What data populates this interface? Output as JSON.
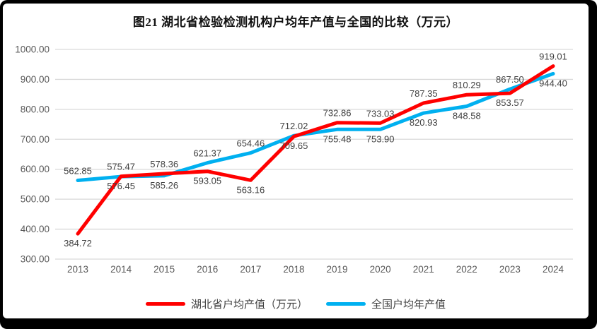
{
  "window": {
    "frame_color": "#000000",
    "background": "#ffffff"
  },
  "chart_data": {
    "type": "line",
    "title": "图21 湖北省检验检测机构户均年产值与全国的比较（万元）",
    "categories": [
      "2013",
      "2014",
      "2015",
      "2016",
      "2017",
      "2018",
      "2019",
      "2020",
      "2021",
      "2022",
      "2023",
      "2024"
    ],
    "series": [
      {
        "name": "湖北省户均产值（万元）",
        "color": "#FF0000",
        "label_position": "below",
        "values": [
          384.72,
          576.45,
          585.26,
          593.05,
          563.16,
          709.65,
          755.48,
          753.9,
          820.93,
          848.58,
          853.57,
          944.4
        ]
      },
      {
        "name": "全国户均年产值",
        "color": "#00B0F0",
        "label_position": "above",
        "values": [
          562.85,
          575.47,
          578.36,
          621.37,
          654.46,
          712.02,
          732.86,
          733.03,
          787.35,
          810.29,
          867.5,
          919.01
        ]
      }
    ],
    "xlabel": "",
    "ylabel": "",
    "ylim": [
      300,
      1000
    ],
    "ytick_labels": [
      "300.00",
      "400.00",
      "500.00",
      "600.00",
      "700.00",
      "800.00",
      "900.00",
      "1000.00"
    ],
    "grid": true,
    "legend_position": "bottom",
    "decimals": 2,
    "colors": {
      "grid": "#D9D9D9",
      "axis_text": "#595959",
      "data_label_text": "#404040",
      "title_text": "#111111"
    }
  }
}
